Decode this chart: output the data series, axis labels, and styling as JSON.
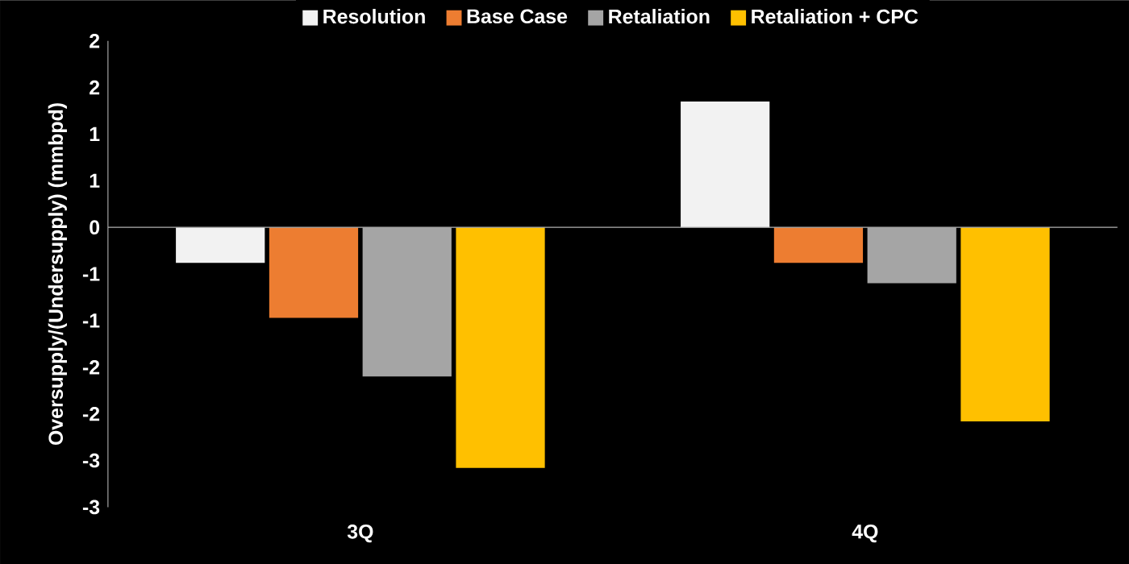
{
  "chart_data": {
    "type": "bar",
    "ylabel": "Oversupply/(Undersupply) (mmbpd)",
    "categories": [
      "3Q",
      "4Q"
    ],
    "series": [
      {
        "name": "Resolution",
        "color": "#f2f2f2",
        "values": [
          -0.38,
          1.35
        ]
      },
      {
        "name": "Base Case",
        "color": "#ed7d31",
        "values": [
          -0.97,
          -0.38
        ]
      },
      {
        "name": "Retaliation",
        "color": "#a5a5a5",
        "values": [
          -1.6,
          -0.6
        ]
      },
      {
        "name": "Retaliation + CPC",
        "color": "#ffc000",
        "values": [
          -2.58,
          -2.08
        ]
      }
    ],
    "ylim": [
      -3,
      2
    ],
    "yticks": [
      {
        "value": -3,
        "label": "-3"
      },
      {
        "value": -2.5,
        "label": "-3"
      },
      {
        "value": -2,
        "label": "-2"
      },
      {
        "value": -1.5,
        "label": "-2"
      },
      {
        "value": -1,
        "label": "-1"
      },
      {
        "value": -0.5,
        "label": "-1"
      },
      {
        "value": 0,
        "label": "0"
      },
      {
        "value": 0.5,
        "label": "1"
      },
      {
        "value": 1,
        "label": "1"
      },
      {
        "value": 1.5,
        "label": "2"
      },
      {
        "value": 2,
        "label": "2"
      }
    ],
    "legend": "top"
  }
}
